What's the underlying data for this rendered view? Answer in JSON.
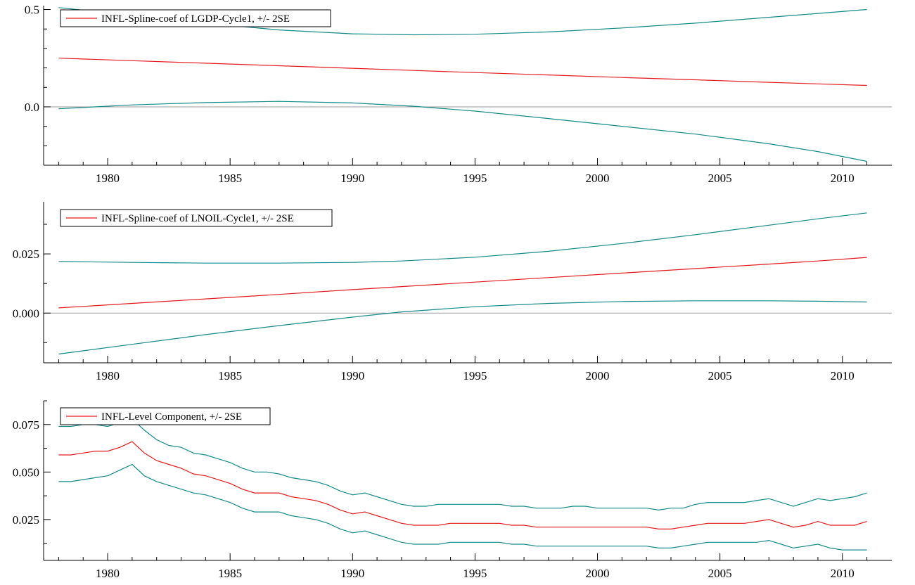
{
  "colors": {
    "estimate": "#e41a1c",
    "band": "#148a8a",
    "zero": "#999999",
    "axis": "#000000"
  },
  "chart_data": [
    {
      "type": "line",
      "legend": "INFL-Spline-coef of LGDP-Cycle1, +/- 2SE",
      "legend_placement": "top-left",
      "xlim": [
        1977.5,
        2011.5
      ],
      "ylim": [
        -0.3,
        0.52
      ],
      "xticks": [
        1980,
        1985,
        1990,
        1995,
        2000,
        2005,
        2010
      ],
      "yticks": [
        0.5,
        0.0
      ],
      "ytick_labels": [
        "0.5",
        "0.0"
      ],
      "yminor": [
        -0.2,
        -0.1,
        0.1,
        0.2,
        0.3,
        0.4
      ],
      "zero_line": true,
      "x": [
        1978,
        1981,
        1984,
        1987,
        1990,
        1992.5,
        1995,
        1998,
        2001,
        2004,
        2007,
        2009,
        2011
      ],
      "series": [
        {
          "name": "INFL-Spline-coef of LGDP-Cycle1",
          "role": "estimate",
          "values": [
            0.25,
            0.237,
            0.224,
            0.211,
            0.198,
            0.187,
            0.176,
            0.164,
            0.151,
            0.139,
            0.126,
            0.118,
            0.11
          ]
        },
        {
          "role": "upper",
          "values": [
            0.51,
            0.47,
            0.43,
            0.395,
            0.375,
            0.37,
            0.373,
            0.385,
            0.405,
            0.43,
            0.46,
            0.48,
            0.5
          ]
        },
        {
          "role": "lower",
          "values": [
            -0.01,
            0.01,
            0.022,
            0.028,
            0.02,
            0.003,
            -0.022,
            -0.06,
            -0.1,
            -0.14,
            -0.19,
            -0.23,
            -0.28
          ]
        }
      ]
    },
    {
      "type": "line",
      "legend": "INFL-Spline-coef of LNOIL-Cycle1, +/- 2SE",
      "legend_placement": "top-left",
      "xlim": [
        1977.5,
        2011.5
      ],
      "ylim": [
        -0.021,
        0.047
      ],
      "xticks": [
        1980,
        1985,
        1990,
        1995,
        2000,
        2005,
        2010
      ],
      "yticks": [
        0.025,
        0.0
      ],
      "ytick_labels": [
        "0.025",
        "0.000"
      ],
      "yminor": [
        -0.0125,
        0.0125,
        0.0375
      ],
      "zero_line": true,
      "x": [
        1978,
        1981,
        1984,
        1987,
        1990,
        1992,
        1995,
        1998,
        2001,
        2004,
        2007,
        2009,
        2011
      ],
      "series": [
        {
          "name": "INFL-Spline-coef of LNOIL-Cycle1",
          "role": "estimate",
          "values": [
            0.0022,
            0.0041,
            0.006,
            0.0079,
            0.0099,
            0.0112,
            0.0131,
            0.015,
            0.0169,
            0.0188,
            0.0207,
            0.022,
            0.0235
          ]
        },
        {
          "role": "upper",
          "values": [
            0.0218,
            0.0214,
            0.0211,
            0.0211,
            0.0214,
            0.022,
            0.0236,
            0.0261,
            0.0294,
            0.0331,
            0.0371,
            0.0398,
            0.0423
          ]
        },
        {
          "role": "lower",
          "values": [
            -0.0173,
            -0.0132,
            -0.0091,
            -0.0053,
            -0.0017,
            0.0005,
            0.0027,
            0.0041,
            0.0049,
            0.0052,
            0.0052,
            0.005,
            0.0047
          ]
        }
      ]
    },
    {
      "type": "line",
      "legend": "INFL-Level Component, +/- 2SE",
      "legend_placement": "top-left",
      "xlim": [
        1977.5,
        2011.5
      ],
      "ylim": [
        0.0035,
        0.0875
      ],
      "xticks": [
        1980,
        1985,
        1990,
        1995,
        2000,
        2005,
        2010
      ],
      "yticks": [
        0.075,
        0.05,
        0.025
      ],
      "ytick_labels": [
        "0.075",
        "0.050",
        "0.025"
      ],
      "yminor": [
        0.0125,
        0.0375,
        0.0625,
        0.0875
      ],
      "zero_line": false,
      "x": [
        1978,
        1978.5,
        1979,
        1979.5,
        1980,
        1980.5,
        1981,
        1981.5,
        1982,
        1982.5,
        1983,
        1983.5,
        1984,
        1984.5,
        1985,
        1985.5,
        1986,
        1986.5,
        1987,
        1987.5,
        1988,
        1988.5,
        1989,
        1989.5,
        1990,
        1990.5,
        1991,
        1991.5,
        1992,
        1992.5,
        1993,
        1993.5,
        1994,
        1994.5,
        1995,
        1995.5,
        1996,
        1996.5,
        1997,
        1997.5,
        1998,
        1998.5,
        1999,
        1999.5,
        2000,
        2000.5,
        2001,
        2001.5,
        2002,
        2002.5,
        2003,
        2003.5,
        2004,
        2004.5,
        2005,
        2005.5,
        2006,
        2006.5,
        2007,
        2007.5,
        2008,
        2008.5,
        2009,
        2009.5,
        2010,
        2010.5,
        2011
      ],
      "series": [
        {
          "name": "INFL-Level Component",
          "role": "estimate",
          "values": [
            0.059,
            0.059,
            0.06,
            0.061,
            0.061,
            0.063,
            0.066,
            0.06,
            0.056,
            0.054,
            0.052,
            0.049,
            0.048,
            0.046,
            0.044,
            0.041,
            0.039,
            0.039,
            0.039,
            0.037,
            0.036,
            0.035,
            0.033,
            0.03,
            0.028,
            0.029,
            0.027,
            0.025,
            0.023,
            0.022,
            0.022,
            0.022,
            0.023,
            0.023,
            0.023,
            0.023,
            0.023,
            0.022,
            0.022,
            0.021,
            0.021,
            0.021,
            0.021,
            0.021,
            0.021,
            0.021,
            0.021,
            0.021,
            0.021,
            0.02,
            0.02,
            0.021,
            0.022,
            0.023,
            0.023,
            0.023,
            0.023,
            0.024,
            0.025,
            0.023,
            0.021,
            0.022,
            0.024,
            0.022,
            0.022,
            0.022,
            0.024
          ]
        },
        {
          "role": "upper",
          "values": [
            0.074,
            0.074,
            0.075,
            0.075,
            0.074,
            0.076,
            0.078,
            0.072,
            0.067,
            0.064,
            0.063,
            0.06,
            0.059,
            0.057,
            0.055,
            0.052,
            0.05,
            0.05,
            0.049,
            0.047,
            0.046,
            0.045,
            0.043,
            0.04,
            0.038,
            0.039,
            0.037,
            0.035,
            0.033,
            0.032,
            0.032,
            0.033,
            0.033,
            0.033,
            0.033,
            0.033,
            0.033,
            0.032,
            0.032,
            0.031,
            0.031,
            0.031,
            0.032,
            0.032,
            0.031,
            0.031,
            0.031,
            0.031,
            0.031,
            0.03,
            0.031,
            0.031,
            0.033,
            0.034,
            0.034,
            0.034,
            0.034,
            0.035,
            0.036,
            0.034,
            0.032,
            0.034,
            0.036,
            0.035,
            0.036,
            0.037,
            0.039
          ]
        },
        {
          "role": "lower",
          "values": [
            0.045,
            0.045,
            0.046,
            0.047,
            0.048,
            0.051,
            0.054,
            0.048,
            0.045,
            0.043,
            0.041,
            0.039,
            0.038,
            0.036,
            0.034,
            0.031,
            0.029,
            0.029,
            0.029,
            0.027,
            0.026,
            0.025,
            0.023,
            0.02,
            0.018,
            0.019,
            0.017,
            0.015,
            0.013,
            0.012,
            0.012,
            0.012,
            0.013,
            0.013,
            0.013,
            0.013,
            0.013,
            0.012,
            0.012,
            0.011,
            0.011,
            0.011,
            0.011,
            0.011,
            0.011,
            0.011,
            0.011,
            0.011,
            0.011,
            0.01,
            0.01,
            0.011,
            0.012,
            0.013,
            0.013,
            0.013,
            0.013,
            0.013,
            0.014,
            0.012,
            0.01,
            0.011,
            0.012,
            0.01,
            0.009,
            0.009,
            0.009
          ]
        }
      ]
    }
  ]
}
